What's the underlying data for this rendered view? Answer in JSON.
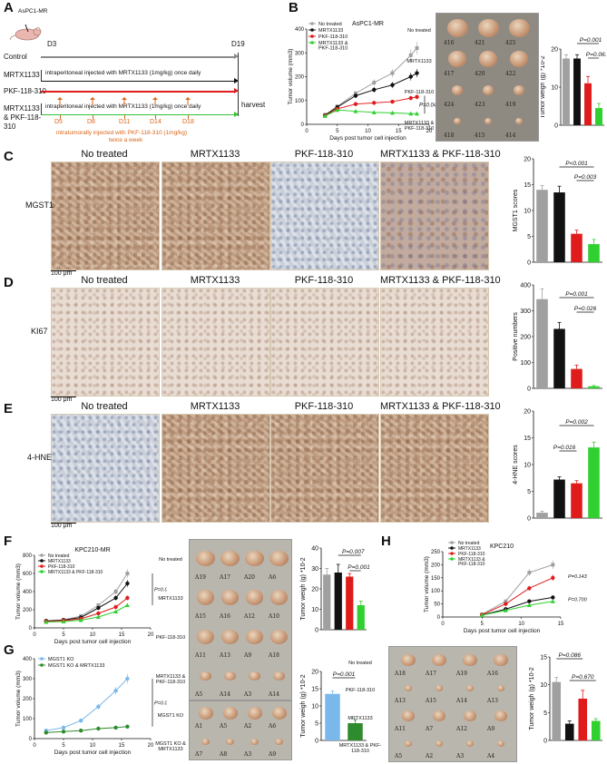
{
  "panels": {
    "A": {
      "letter": "A",
      "model": "AsPC1-MR",
      "start_day": "D3",
      "end_day": "D19",
      "rows": [
        {
          "label": "Control",
          "color": "#8a8a8a"
        },
        {
          "label": "MRTX1133",
          "color": "#111111",
          "note": "intraperitoneal injected with MRTX1133 (1mg/kg) once daily"
        },
        {
          "label": "PKF-118-310",
          "color": "#e01b1b"
        },
        {
          "label": "MRTX1133 & PKF-118-310",
          "color": "#34c234",
          "note": "intraperitoneal injected with MRTX1133 (1mg/kg) once daily"
        }
      ],
      "harvest": "harvest",
      "dose_days": [
        "D5",
        "D8",
        "D11",
        "D14",
        "D18"
      ],
      "note_line1": "intratumorally injected with PKF-118-310 (1mg/kg)",
      "note_line2": "twice a week"
    },
    "B": {
      "letter": "B",
      "photo_rows": [
        "No treated",
        "MRTX1133",
        "PKF-118-310",
        "MRTX1133 & PKF-118-310"
      ],
      "photo_ids": [
        [
          "416",
          "421",
          "425"
        ],
        [
          "417",
          "420",
          "422"
        ],
        [
          "424",
          "423",
          "419"
        ],
        [
          "418",
          "415",
          "414"
        ]
      ]
    },
    "C": {
      "letter": "C",
      "marker": "MGST1",
      "scale": "100 μm"
    },
    "D": {
      "letter": "D",
      "marker": "KI67",
      "scale": "100 μm"
    },
    "E": {
      "letter": "E",
      "marker": "4-HNE",
      "scale": "100 μm"
    },
    "F": {
      "letter": "F",
      "photo_rows": [
        "No treated",
        "MRTX1133",
        "PKF-118-310",
        "MRTX1133 & PKF-118-310"
      ],
      "photo_ids": [
        [
          "A19",
          "A17",
          "A20",
          "A6"
        ],
        [
          "A15",
          "A16",
          "A12",
          "A10"
        ],
        [
          "A11",
          "A13",
          "A9",
          "A18"
        ],
        [
          "A5",
          "A14",
          "A3",
          "A14"
        ]
      ]
    },
    "G": {
      "letter": "G",
      "photo_rows": [
        "MGST1 KO",
        "MGST1 KO & MRTX1133"
      ],
      "photo_ids": [
        [
          "A1",
          "A5",
          "A2",
          "A6"
        ],
        [
          "A7",
          "A8",
          "A3",
          "A9"
        ]
      ]
    },
    "H": {
      "letter": "H",
      "photo_rows": [
        "No treated",
        "PKF-118-310",
        "MRTX1133",
        "MRTX1133 & PKF-118-310"
      ],
      "photo_ids": [
        [
          "A18",
          "A17",
          "A19",
          "A16"
        ],
        [
          "A13",
          "A15",
          "A14",
          "A13"
        ],
        [
          "A11",
          "A7",
          "A12",
          "A9"
        ],
        [
          "A5",
          "A2",
          "A3",
          "A4"
        ]
      ]
    }
  },
  "ihc_columns": [
    "No treated",
    "MRTX1133",
    "PKF-118-310",
    "MRTX1133 & PKF-118-310"
  ],
  "colors": {
    "none": "#a0a0a0",
    "mrtx": "#111111",
    "pkf": "#e01b1b",
    "combo": "#2fd02f",
    "ko": "#7ab8ec",
    "ko_mrtx": "#2e8b2e",
    "note": "#d9661a"
  },
  "chart_data": [
    {
      "id": "B-growth",
      "type": "line",
      "title": "AsPC1-MR",
      "xlabel": "Days post tumor cell injection",
      "ylabel": "Tumor volume (mm3)",
      "xlim": [
        0,
        20
      ],
      "ylim": [
        0,
        400
      ],
      "xticks": [
        0,
        5,
        10,
        15,
        20
      ],
      "yticks": [
        0,
        100,
        200,
        300,
        400
      ],
      "x": [
        3,
        5,
        8,
        11,
        14,
        17,
        18
      ],
      "series": [
        {
          "name": "No treated",
          "values": [
            40,
            75,
            130,
            175,
            215,
            290,
            320
          ]
        },
        {
          "name": "MRTX1133",
          "values": [
            38,
            72,
            120,
            145,
            165,
            200,
            215
          ]
        },
        {
          "name": "PKF-118-310",
          "values": [
            36,
            65,
            85,
            90,
            95,
            110,
            115
          ]
        },
        {
          "name": "MRTX1133 & PKF-118-310",
          "values": [
            35,
            60,
            55,
            50,
            48,
            45,
            45
          ]
        }
      ],
      "annotations": [
        "P=0.042"
      ]
    },
    {
      "id": "B-weight",
      "type": "bar",
      "ylabel": "Tumor weigh (g) *10-2",
      "ylim": [
        0,
        20
      ],
      "yticks": [
        0,
        10,
        20
      ],
      "categories": [
        "No treated",
        "MRTX1133",
        "PKF-118-310",
        "MRTX1133 & PKF-118-310"
      ],
      "values": [
        17.5,
        17.5,
        11,
        4.5
      ],
      "errors": [
        1,
        1,
        1.8,
        1.2
      ],
      "annotations": [
        "P=0.001",
        "P=0.061"
      ]
    },
    {
      "id": "C-scores",
      "type": "bar",
      "ylabel": "MGST1 scores",
      "ylim": [
        0,
        20
      ],
      "yticks": [
        0,
        5,
        10,
        15,
        20
      ],
      "categories": [
        "No treated",
        "MRTX1133",
        "PKF-118-310",
        "MRTX1133 & PKF-118-310"
      ],
      "values": [
        14,
        13.5,
        5.5,
        3.5
      ],
      "errors": [
        0.8,
        1.2,
        0.7,
        0.9
      ],
      "annotations": [
        "P<0.001",
        "P=0.003"
      ]
    },
    {
      "id": "D-positive",
      "type": "bar",
      "ylabel": "Positive numbers",
      "ylim": [
        0,
        400
      ],
      "yticks": [
        0,
        100,
        200,
        300,
        400
      ],
      "categories": [
        "No treated",
        "MRTX1133",
        "PKF-118-310",
        "MRTX1133 & PKF-118-310"
      ],
      "values": [
        345,
        230,
        75,
        8
      ],
      "errors": [
        40,
        25,
        15,
        3
      ],
      "annotations": [
        "P=0.001",
        "P=0.026"
      ]
    },
    {
      "id": "E-scores",
      "type": "bar",
      "ylabel": "4-HNE scores",
      "ylim": [
        0,
        20
      ],
      "yticks": [
        0,
        5,
        10,
        15,
        20
      ],
      "categories": [
        "No treated",
        "MRTX1133",
        "PKF-118-310",
        "MRTX1133 & PKF-118-310"
      ],
      "values": [
        1,
        7.2,
        6.5,
        13.2
      ],
      "errors": [
        0.3,
        0.5,
        0.5,
        1
      ],
      "annotations": [
        "P=0.002",
        "P=0.016"
      ]
    },
    {
      "id": "F-growth",
      "type": "line",
      "title": "KPC210-MR",
      "xlabel": "Days post tumor cell injection",
      "ylabel": "Tumor volume (mm3)",
      "xlim": [
        0,
        20
      ],
      "ylim": [
        0,
        800
      ],
      "xticks": [
        0,
        5,
        10,
        15,
        20
      ],
      "yticks": [
        0,
        200,
        400,
        600,
        800
      ],
      "x": [
        2,
        5,
        8,
        11,
        14,
        16
      ],
      "series": [
        {
          "name": "No treated",
          "values": [
            80,
            90,
            130,
            250,
            400,
            600
          ]
        },
        {
          "name": "MRTX1133",
          "values": [
            75,
            85,
            115,
            220,
            330,
            490
          ]
        },
        {
          "name": "PKF-118-310",
          "values": [
            70,
            80,
            100,
            160,
            230,
            330
          ]
        },
        {
          "name": "MRTX1133 & PKF-118-310",
          "values": [
            65,
            70,
            85,
            120,
            180,
            250
          ]
        }
      ],
      "annotations": [
        "P=0.031"
      ]
    },
    {
      "id": "F-weight",
      "type": "bar",
      "ylabel": "Tumor weigh (g) *10-2",
      "ylim": [
        0,
        40
      ],
      "yticks": [
        0,
        10,
        20,
        30,
        40
      ],
      "categories": [
        "No treated",
        "MRTX1133",
        "PKF-118-310",
        "MRTX1133 & PKF-118-310"
      ],
      "values": [
        27,
        28,
        26,
        12
      ],
      "errors": [
        3,
        4,
        1.5,
        2
      ],
      "annotations": [
        "P=0.007",
        "P=0.001"
      ]
    },
    {
      "id": "G-growth",
      "type": "line",
      "xlabel": "Days post tumor cell injection",
      "ylabel": "Tumor volume (mm3)",
      "xlim": [
        0,
        20
      ],
      "ylim": [
        0,
        400
      ],
      "xticks": [
        0,
        5,
        10,
        15,
        20
      ],
      "yticks": [
        0,
        100,
        200,
        300,
        400
      ],
      "x": [
        2,
        5,
        8,
        11,
        14,
        16
      ],
      "series": [
        {
          "name": "MGST1 KO",
          "values": [
            40,
            55,
            90,
            160,
            240,
            300
          ]
        },
        {
          "name": "MGST1 KO & MRTX1133",
          "values": [
            30,
            35,
            40,
            50,
            55,
            60
          ]
        }
      ],
      "annotations": [
        "P=0.001"
      ]
    },
    {
      "id": "G-weight",
      "type": "bar",
      "ylabel": "Tumor weigh (g) *10-2",
      "ylim": [
        0,
        20
      ],
      "yticks": [
        0,
        5,
        10,
        15,
        20
      ],
      "categories": [
        "MGST1 KO",
        "MGST1 KO & MRTX1133"
      ],
      "values": [
        13.5,
        5
      ],
      "errors": [
        0.8,
        1
      ],
      "annotations": [
        "P=0.001"
      ]
    },
    {
      "id": "H-growth",
      "type": "line",
      "title": "KPC210",
      "xlabel": "Days post tumor cell injection",
      "ylabel": "Tumor volume (mm3)",
      "xlim": [
        0,
        15
      ],
      "ylim": [
        0,
        250
      ],
      "xticks": [
        0,
        5,
        10,
        15
      ],
      "yticks": [
        0,
        50,
        100,
        150,
        200,
        250
      ],
      "x": [
        5,
        8,
        11,
        14
      ],
      "series": [
        {
          "name": "No treated",
          "values": [
            10,
            60,
            170,
            200
          ]
        },
        {
          "name": "MRTX1133",
          "values": [
            8,
            30,
            60,
            75
          ]
        },
        {
          "name": "PKF-118-310",
          "values": [
            9,
            50,
            110,
            150
          ]
        },
        {
          "name": "MRTX1133 & PKF-118-310",
          "values": [
            7,
            25,
            45,
            60
          ]
        }
      ],
      "annotations": [
        "P=0.143",
        "P=0.700"
      ]
    },
    {
      "id": "H-weight",
      "type": "bar",
      "ylabel": "Tumor weigh (g) *10-2",
      "ylim": [
        0,
        15
      ],
      "yticks": [
        0,
        5,
        10,
        15
      ],
      "categories": [
        "No treated",
        "MRTX1133",
        "PKF-118-310",
        "MRTX1133 & PKF-118-310"
      ],
      "values": [
        10.5,
        3,
        7.5,
        3.5
      ],
      "errors": [
        0.8,
        0.5,
        1.5,
        0.4
      ],
      "annotations": [
        "P=0.086",
        "P=0.670"
      ]
    }
  ]
}
